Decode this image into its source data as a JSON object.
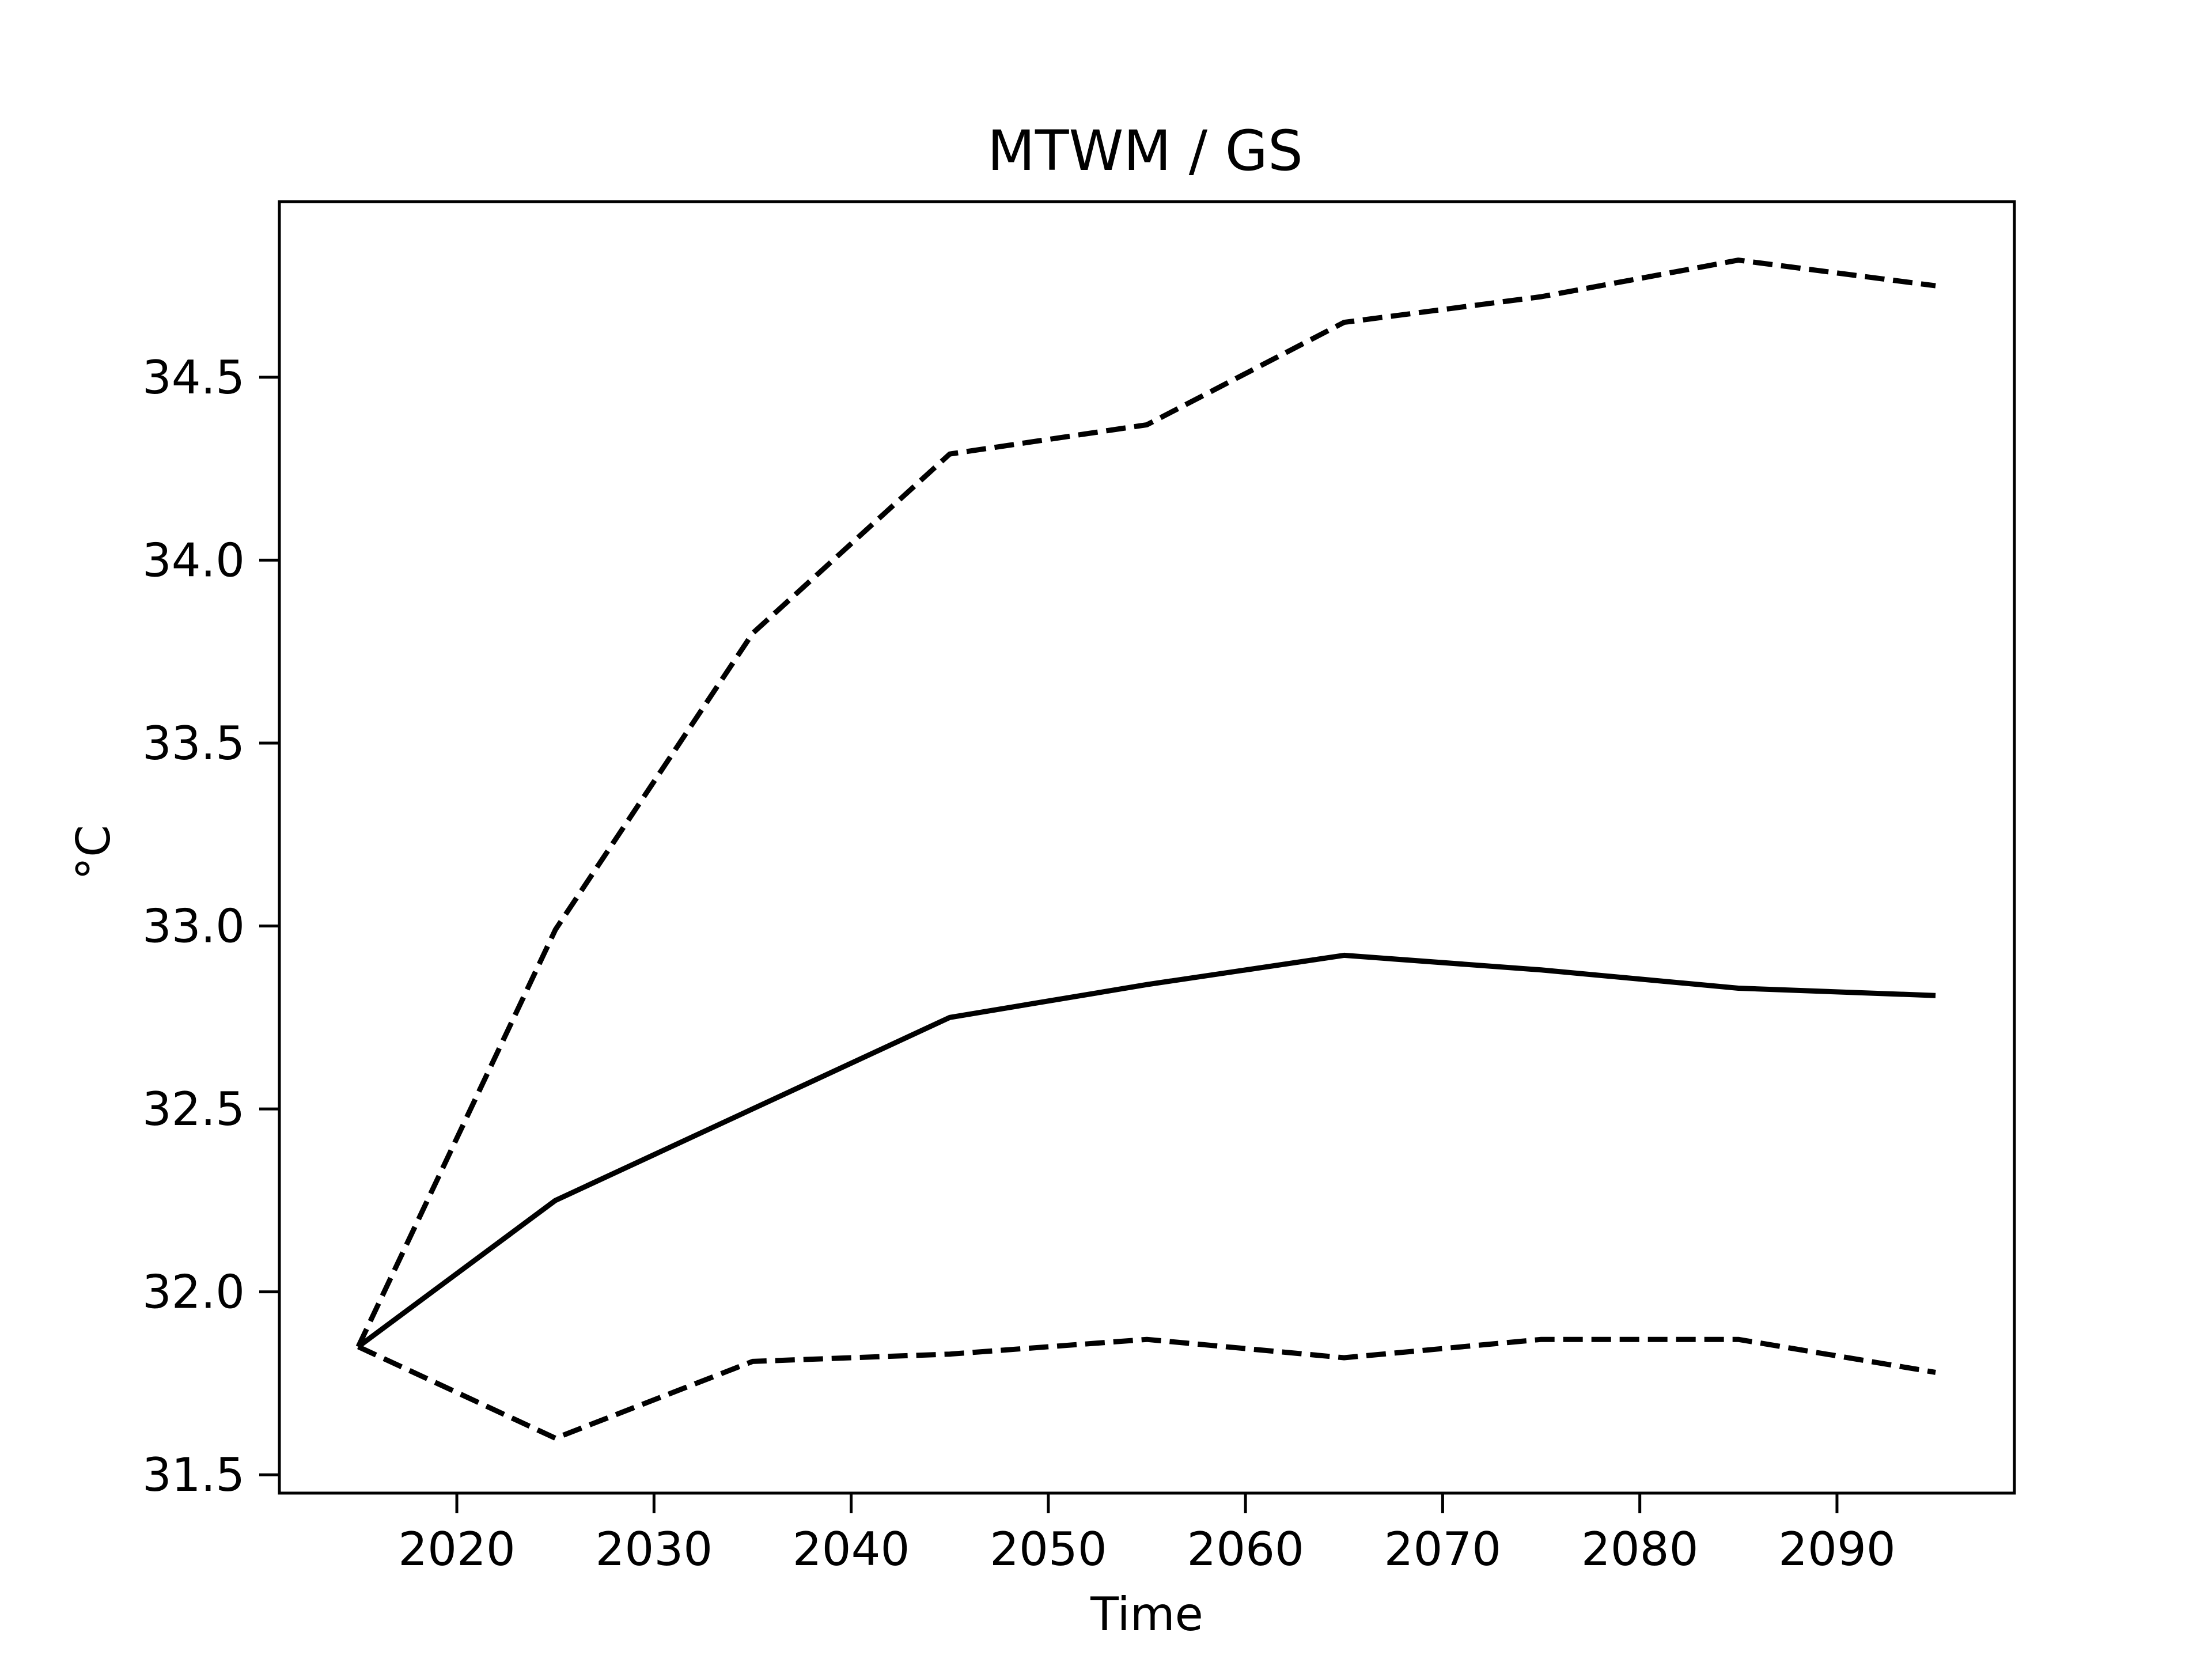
{
  "chart_data": {
    "type": "line",
    "title": "MTWM / GS",
    "xlabel": "Time",
    "ylabel": "°C",
    "x": [
      2015,
      2025,
      2035,
      2045,
      2055,
      2065,
      2075,
      2085,
      2095
    ],
    "series": [
      {
        "style": "dashed",
        "values": [
          31.85,
          32.99,
          33.8,
          34.29,
          34.37,
          34.65,
          34.72,
          34.82,
          34.75
        ]
      },
      {
        "style": "solid",
        "values": [
          31.85,
          32.25,
          32.5,
          32.75,
          32.84,
          32.92,
          32.88,
          32.83,
          32.81
        ]
      },
      {
        "style": "dashed",
        "values": [
          31.85,
          31.6,
          31.81,
          31.83,
          31.87,
          31.82,
          31.87,
          31.87,
          31.78
        ]
      }
    ],
    "xlim": [
      2011,
      2099
    ],
    "ylim": [
      31.45,
      34.98
    ],
    "xticks": [
      2020,
      2030,
      2040,
      2050,
      2060,
      2070,
      2080,
      2090
    ],
    "yticks": [
      31.5,
      32.0,
      32.5,
      33.0,
      33.5,
      34.0,
      34.5
    ],
    "ytick_labels": [
      "31.5",
      "32.0",
      "32.5",
      "33.0",
      "33.5",
      "34.0",
      "34.5"
    ],
    "grid": false,
    "line_color": "#000000"
  }
}
